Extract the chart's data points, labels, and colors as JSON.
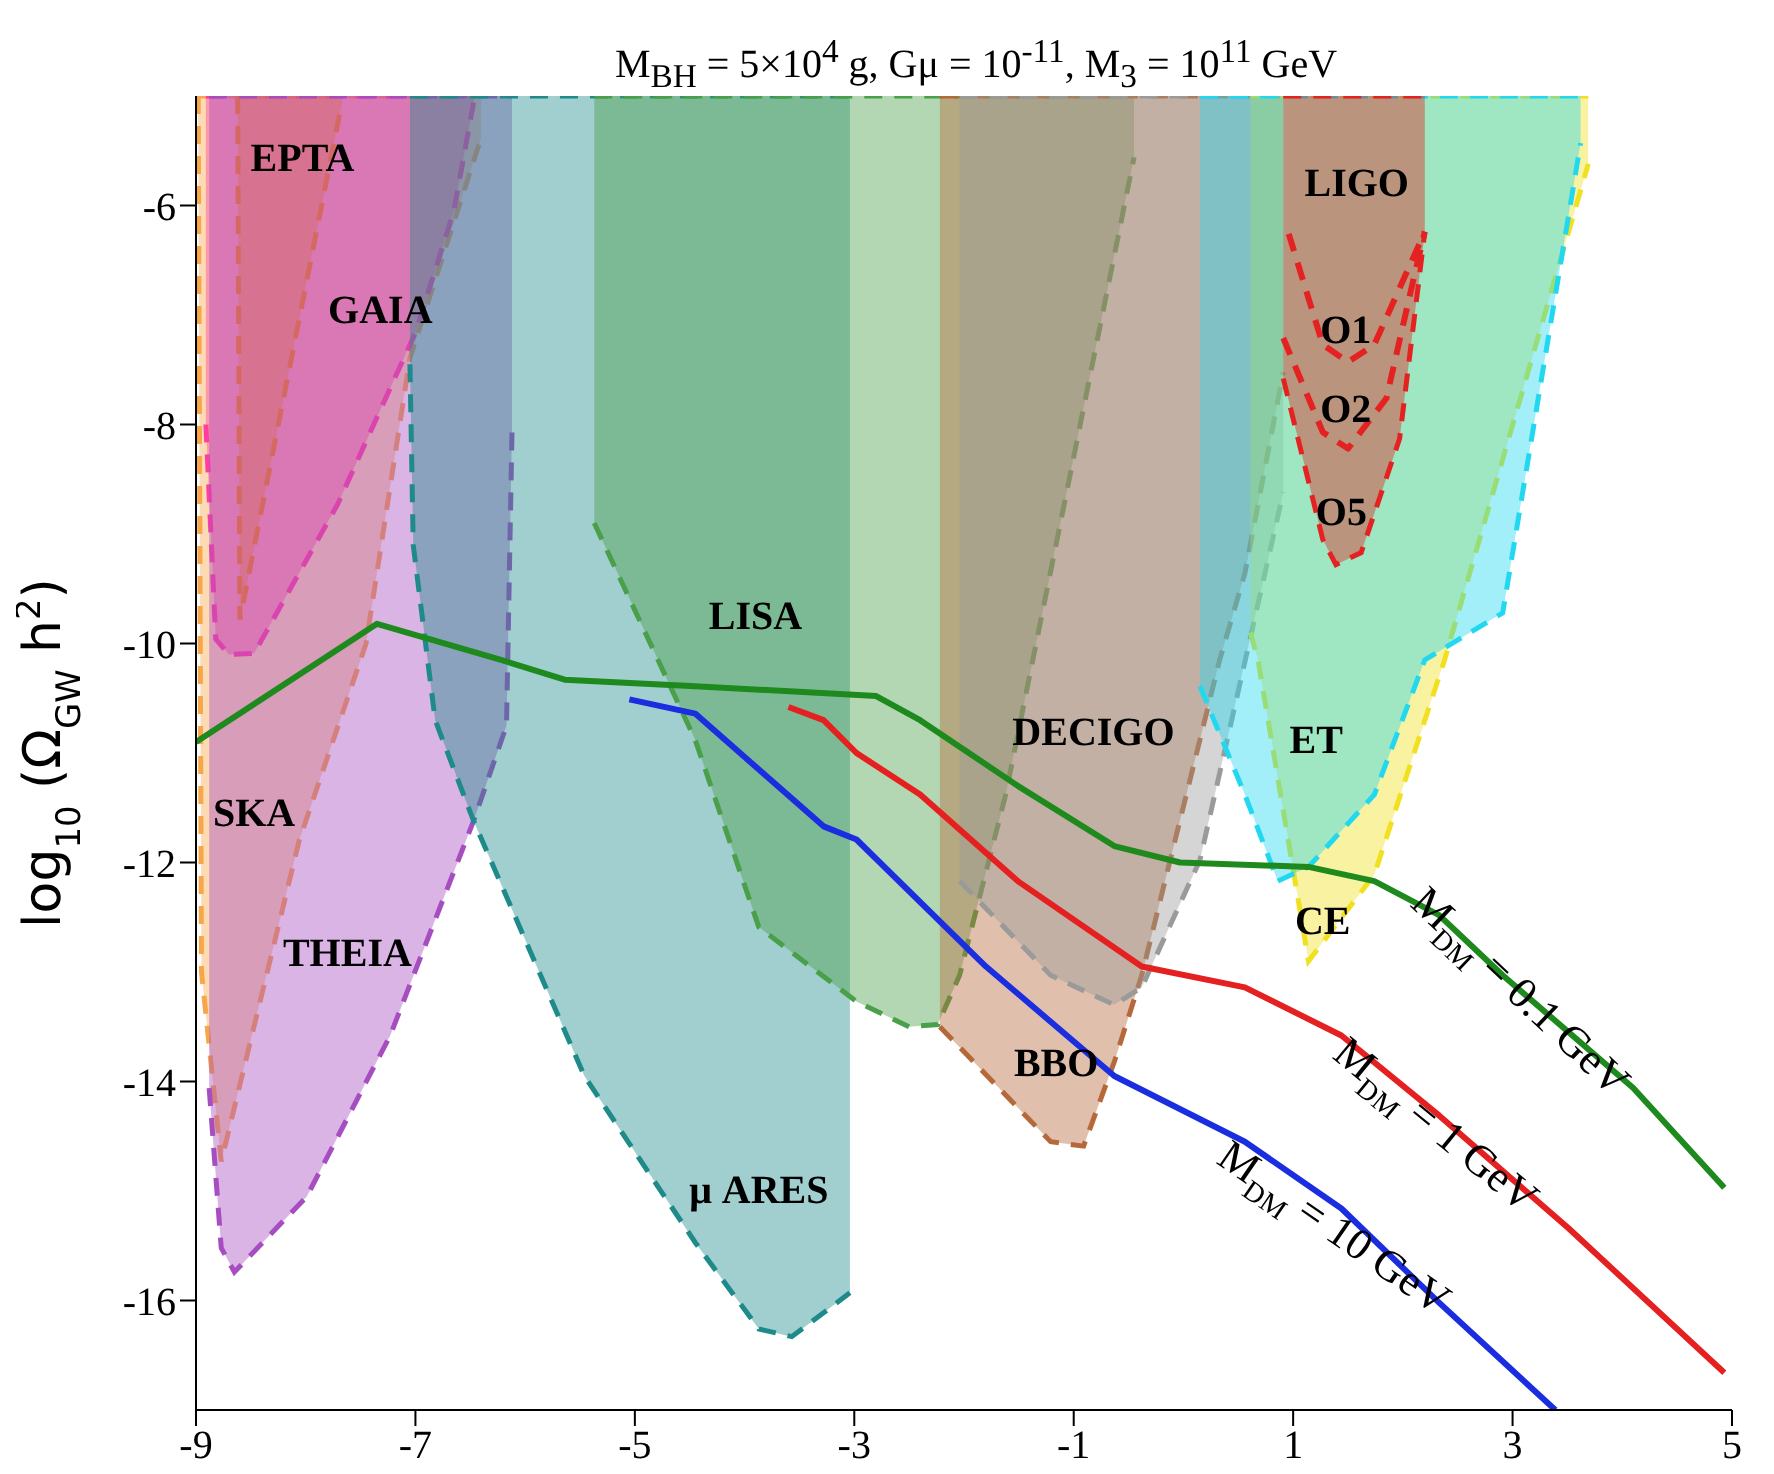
{
  "chart_data": {
    "type": "line",
    "title": "M$_{BH}$ = 5×10$^{4}$ g, Gμ = 10$^{-11}$, M$_{3}$ = 10$^{11}$ GeV",
    "ylabel": "log$_{10}$ (Ω$_{GW}$ h$^{2}$)",
    "xlim": [
      -9,
      5
    ],
    "xticks": [
      -9,
      -7,
      -5,
      -3,
      -1,
      1,
      3,
      5
    ],
    "ylim": [
      -17,
      -5
    ],
    "yticks": [
      -16,
      -14,
      -12,
      -10,
      -8,
      -6
    ],
    "series": [
      {
        "type": "area",
        "name": "SKA",
        "color": "#f7a64a",
        "line_style": "dashed",
        "x": [
          -8.98,
          -8.95,
          -8.77,
          -8.06,
          -7.45,
          -7.05,
          -6.4
        ],
        "values": [
          -5,
          -13,
          -14.73,
          -11.8,
          -10,
          -7.39,
          -5.38
        ]
      },
      {
        "type": "area",
        "name": "GAIA",
        "color": "#ff3ea0",
        "line_style": "dashed",
        "x": [
          -8.91,
          -8.82,
          -8.7,
          -8.47,
          -7.71,
          -7.0,
          -6.65,
          -6.47
        ],
        "values": [
          -8,
          -9.96,
          -10.1,
          -10.09,
          -8.73,
          -7.16,
          -6.05,
          -5.06
        ]
      },
      {
        "type": "area",
        "name": "EPTA",
        "color": "#f77f1c",
        "line_style": "dashed",
        "x": [
          -8.62,
          -8.6,
          -7.67
        ],
        "values": [
          -5,
          -9.78,
          -5.06
        ]
      },
      {
        "type": "area",
        "name": "THEIA",
        "color": "#a64dc0",
        "line_style": "dashed",
        "x": [
          -8.88,
          -8.77,
          -8.65,
          -7.99,
          -7.23,
          -6.47,
          -6.17,
          -6.12
        ],
        "values": [
          -14.06,
          -15.52,
          -15.74,
          -15.05,
          -13.58,
          -11.62,
          -10.75,
          -8.07
        ]
      },
      {
        "type": "area",
        "name": "μ ARES",
        "color": "#1e8a8a",
        "line_style": "dashed",
        "x": [
          -7.05,
          -7.02,
          -6.82,
          -6.47,
          -5.46,
          -4.45,
          -3.87,
          -3.57,
          -3.04
        ],
        "values": [
          -7.45,
          -9.1,
          -10.7,
          -11.62,
          -13.95,
          -15.47,
          -16.26,
          -16.33,
          -15.93
        ]
      },
      {
        "type": "area",
        "name": "LISA",
        "color": "#4aa04a",
        "line_style": "dashed",
        "x": [
          -5.37,
          -4.45,
          -3.87,
          -2.98,
          -2.5,
          -2.24,
          -2.04,
          -1.62,
          -0.45
        ],
        "values": [
          -8.9,
          -10.88,
          -12.59,
          -13.27,
          -13.5,
          -13.48,
          -13.03,
          -11.38,
          -5.56
        ]
      },
      {
        "type": "area",
        "name": "BBO",
        "color": "#b5693a",
        "line_style": "dashed",
        "x": [
          -2.22,
          -1.21,
          -0.91,
          -0.63,
          -0.38,
          0.33,
          0.56,
          0.91
        ],
        "values": [
          -13.5,
          -14.55,
          -14.59,
          -13.82,
          -13.03,
          -10.15,
          -9.36,
          -7.52
        ]
      },
      {
        "type": "area",
        "name": "DECIGO",
        "color": "#9a9a9a",
        "line_style": "dashed",
        "x": [
          -2.04,
          -1.21,
          -0.63,
          -0.38,
          0.15,
          0.91
        ],
        "values": [
          -12.17,
          -13.03,
          -13.3,
          -13.14,
          -11.98,
          -8.62
        ]
      },
      {
        "type": "area",
        "name": "CE",
        "color": "#f0e020",
        "line_style": "dashed",
        "x": [
          0.61,
          0.68,
          1.14,
          1.74,
          2.38,
          3.69
        ],
        "values": [
          -9.9,
          -10.15,
          -12.9,
          -12.11,
          -10.15,
          -5.62
        ]
      },
      {
        "type": "area",
        "name": "ET",
        "color": "#22d8f0",
        "line_style": "dashed",
        "x": [
          0.15,
          0.56,
          0.86,
          1.14,
          1.74,
          2.2,
          2.91,
          3.62
        ],
        "values": [
          -10.39,
          -11.38,
          -12.17,
          -12.04,
          -11.38,
          -10.15,
          -9.72,
          -5.43
        ]
      },
      {
        "type": "area",
        "name": "O5",
        "color": "#e52222",
        "line_style": "dashed",
        "x": [
          0.91,
          1.27,
          1.39,
          1.62,
          1.97,
          2.2
        ],
        "values": [
          -7.58,
          -9.05,
          -9.28,
          -9.17,
          -8.13,
          -6.24
        ]
      },
      {
        "type": "line",
        "name": "O2",
        "color": "#e52222",
        "line_style": "dashed",
        "x": [
          0.91,
          1.27,
          1.5,
          1.85,
          2.1,
          2.2
        ],
        "values": [
          -7.21,
          -8.07,
          -8.22,
          -7.76,
          -6.66,
          -6.24
        ]
      },
      {
        "type": "line",
        "name": "O1",
        "color": "#e52222",
        "line_style": "dashed",
        "x": [
          0.96,
          1.27,
          1.5,
          1.74,
          2.2
        ],
        "values": [
          -6.26,
          -7.27,
          -7.43,
          -7.27,
          -6.24
        ]
      },
      {
        "name": "M$_{DM}$ = 0.1 GeV",
        "color": "#1e8a1e",
        "line_style": "solid",
        "x": [
          -9,
          -7.35,
          -6.22,
          -5.64,
          -4.45,
          -2.8,
          -2.4,
          -1.51,
          -0.63,
          -0.03,
          1.14,
          1.74,
          2.33,
          2.91,
          4.1,
          4.93
        ],
        "values": [
          -10.9,
          -9.82,
          -10.15,
          -10.33,
          -10.39,
          -10.48,
          -10.7,
          -11.3,
          -11.85,
          -12.0,
          -12.04,
          -12.17,
          -12.48,
          -13.03,
          -14.06,
          -14.97
        ]
      },
      {
        "name": "M$_{DM}$ = 1 GeV",
        "color": "#e52020",
        "line_style": "solid",
        "x": [
          -3.6,
          -3.28,
          -2.98,
          -2.4,
          -1.51,
          -0.38,
          0.56,
          1.44,
          2.33,
          3.51,
          4.93
        ],
        "values": [
          -10.58,
          -10.7,
          -11.0,
          -11.38,
          -12.17,
          -12.95,
          -13.14,
          -13.58,
          -14.31,
          -15.34,
          -16.66
        ]
      },
      {
        "name": "M$_{DM}$ = 10 GeV",
        "color": "#1a2ee0",
        "line_style": "solid",
        "x": [
          -5.05,
          -4.45,
          -3.28,
          -2.98,
          -1.8,
          -0.63,
          0.56,
          1.44,
          2.33,
          3.39
        ],
        "values": [
          -10.51,
          -10.64,
          -11.67,
          -11.79,
          -12.95,
          -13.95,
          -14.55,
          -15.16,
          -16.02,
          -17.0
        ]
      }
    ],
    "annotations": [
      "LIGO"
    ]
  }
}
